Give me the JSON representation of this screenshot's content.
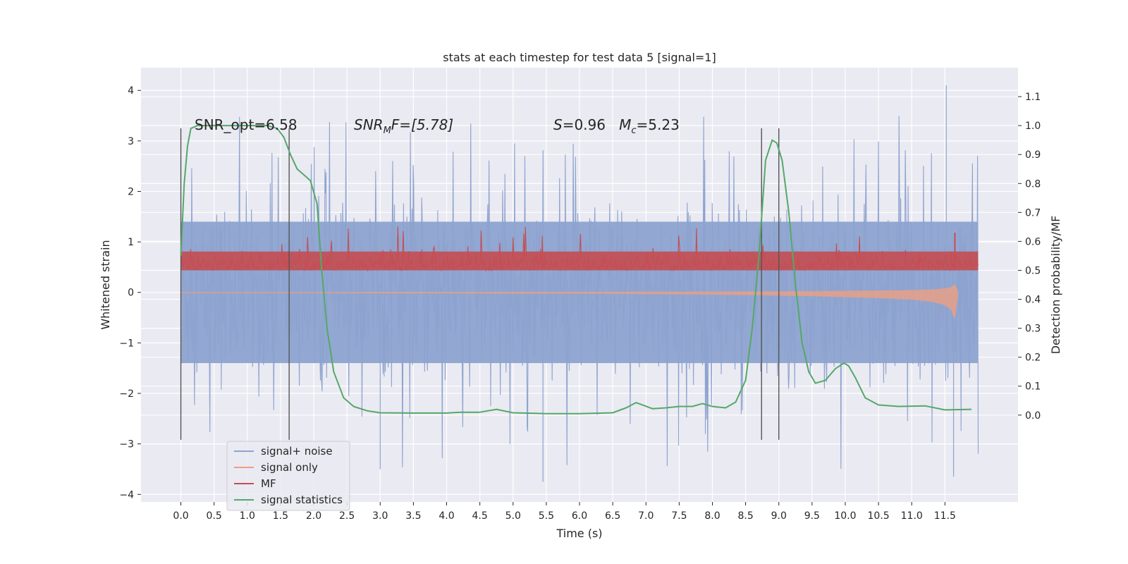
{
  "chart_data": {
    "type": "line",
    "title": "stats at each timestep for test data 5 [signal=1]",
    "xlabel": "Time (s)",
    "ylabel": "Whitened strain",
    "y2label": "Detection probability/MF",
    "xlim": [
      -0.6,
      12.6
    ],
    "ylim": [
      -4.15,
      4.45
    ],
    "y2lim": [
      -0.3,
      1.2
    ],
    "x_ticks": [
      0.0,
      0.5,
      1.0,
      1.5,
      2.0,
      2.5,
      3.0,
      3.5,
      4.0,
      4.5,
      5.0,
      5.5,
      6.0,
      6.5,
      7.0,
      7.5,
      8.0,
      8.5,
      9.0,
      9.5,
      10.0,
      10.5,
      11.0,
      11.5
    ],
    "x_tick_labels": [
      "0.0",
      "0.5",
      "1.0",
      "1.5",
      "2.0",
      "2.5",
      "3.0",
      "3.5",
      "4.0",
      "4.5",
      "5.0",
      "5.5",
      "6.0",
      "6.5",
      "7.0",
      "7.5",
      "8.0",
      "8.5",
      "9.0",
      "9.5",
      "10.0",
      "10.5",
      "11.0",
      "11.5"
    ],
    "y_ticks": [
      4,
      3,
      2,
      1,
      0,
      -1,
      -2,
      -3,
      -4
    ],
    "y_tick_labels": [
      "4",
      "3",
      "2",
      "1",
      "0",
      "−1",
      "−2",
      "−3",
      "−4"
    ],
    "y2_ticks": [
      1.1,
      1.0,
      0.9,
      0.8,
      0.7,
      0.6,
      0.5,
      0.4,
      0.3,
      0.2,
      0.1,
      0.0
    ],
    "y2_tick_labels": [
      "1.1",
      "1.0",
      "0.9",
      "0.8",
      "0.7",
      "0.6",
      "0.5",
      "0.4",
      "0.3",
      "0.2",
      "0.1",
      "0.0"
    ],
    "grid": true,
    "legend_position": "lower-left",
    "annotations": {
      "snr_opt": "SNR_opt=6.58",
      "snr_mf_label": "SNR",
      "snr_mf_sub": "M",
      "snr_mf_rest": "F=[5.78]",
      "s_label": "S",
      "s_rest": "=0.96   ",
      "mc_label": "M",
      "mc_sub": "c",
      "mc_rest": "=5.23"
    },
    "vertical_markers": [
      0.0,
      1.63,
      8.74,
      9.0
    ],
    "marker_range_y": [
      -2.92,
      3.25
    ],
    "series": [
      {
        "name": "signal+ noise",
        "color": "#8da3cf",
        "axis": "left",
        "kind": "noise",
        "x_range": [
          0.0,
          12.0
        ],
        "envelope": {
          "core": 1.4,
          "peak_max": 4.1,
          "peak_min": -3.7
        }
      },
      {
        "name": "signal only",
        "color": "#e8a088",
        "axis": "left",
        "kind": "chirp",
        "x": [
          0.0,
          1.0,
          2.0,
          3.0,
          4.0,
          5.0,
          6.0,
          7.0,
          8.0,
          8.5,
          9.0,
          9.5,
          10.0,
          10.5,
          11.0,
          11.3,
          11.5,
          11.6,
          11.65,
          11.7
        ],
        "amplitude": [
          0.01,
          0.01,
          0.01,
          0.015,
          0.015,
          0.02,
          0.02,
          0.03,
          0.04,
          0.05,
          0.06,
          0.07,
          0.09,
          0.11,
          0.14,
          0.18,
          0.25,
          0.35,
          0.55,
          0.0
        ]
      },
      {
        "name": "MF",
        "color": "#c44e52",
        "axis": "right",
        "kind": "noise",
        "x_range": [
          0.0,
          12.0
        ],
        "baseline": 0.5,
        "envelope": {
          "low": 0.5,
          "high_typ": 0.57,
          "high_max": 0.66,
          "spike_x": 11.65,
          "spike_y": 0.63
        }
      },
      {
        "name": "signal statistics",
        "color": "#55a868",
        "axis": "right",
        "kind": "line",
        "x": [
          0.0,
          0.05,
          0.1,
          0.15,
          0.25,
          0.5,
          1.0,
          1.3,
          1.45,
          1.55,
          1.65,
          1.75,
          1.85,
          1.95,
          2.05,
          2.12,
          2.2,
          2.3,
          2.45,
          2.6,
          2.8,
          3.0,
          3.5,
          4.0,
          4.2,
          4.5,
          4.75,
          5.0,
          5.5,
          6.0,
          6.5,
          6.7,
          6.85,
          6.95,
          7.1,
          7.3,
          7.5,
          7.7,
          7.85,
          8.0,
          8.2,
          8.35,
          8.5,
          8.6,
          8.7,
          8.8,
          8.9,
          8.97,
          9.05,
          9.15,
          9.25,
          9.35,
          9.45,
          9.55,
          9.7,
          9.85,
          9.98,
          10.05,
          10.15,
          10.3,
          10.5,
          10.8,
          11.2,
          11.5,
          11.9
        ],
        "y": [
          0.55,
          0.8,
          0.93,
          0.99,
          1.0,
          1.0,
          1.0,
          1.0,
          0.99,
          0.96,
          0.9,
          0.85,
          0.83,
          0.81,
          0.73,
          0.5,
          0.3,
          0.15,
          0.06,
          0.03,
          0.015,
          0.008,
          0.007,
          0.007,
          0.01,
          0.01,
          0.02,
          0.008,
          0.005,
          0.005,
          0.008,
          0.025,
          0.043,
          0.035,
          0.022,
          0.025,
          0.03,
          0.03,
          0.04,
          0.03,
          0.025,
          0.045,
          0.12,
          0.3,
          0.55,
          0.88,
          0.95,
          0.94,
          0.88,
          0.7,
          0.45,
          0.25,
          0.15,
          0.11,
          0.12,
          0.16,
          0.18,
          0.17,
          0.13,
          0.06,
          0.035,
          0.03,
          0.032,
          0.018,
          0.02
        ]
      }
    ]
  }
}
